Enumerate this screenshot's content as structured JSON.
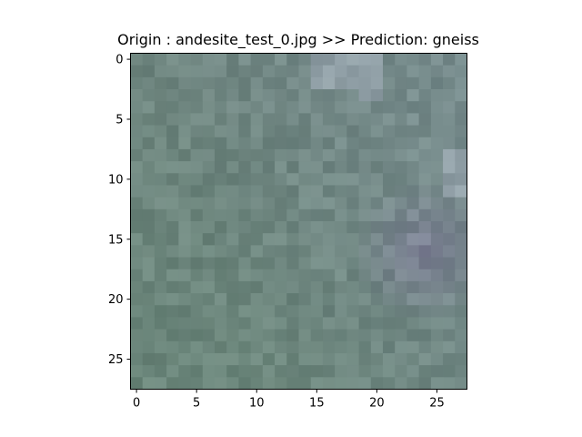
{
  "title": "Origin : andesite_test_0.jpg >> Prediction: gneiss",
  "image": {
    "rows": 28,
    "cols": 28,
    "description_palette": {
      "base": "#6f8580",
      "green": "#6a8779",
      "blue_gray": "#7f9299",
      "purple": "#7f7e98",
      "light": "#a6b0bd"
    }
  },
  "axes": {
    "x_ticks": [
      {
        "value": 0,
        "label": "0"
      },
      {
        "value": 5,
        "label": "5"
      },
      {
        "value": 10,
        "label": "10"
      },
      {
        "value": 15,
        "label": "15"
      },
      {
        "value": 20,
        "label": "20"
      },
      {
        "value": 25,
        "label": "25"
      }
    ],
    "y_ticks": [
      {
        "value": 0,
        "label": "0"
      },
      {
        "value": 5,
        "label": "5"
      },
      {
        "value": 10,
        "label": "10"
      },
      {
        "value": 15,
        "label": "15"
      },
      {
        "value": 20,
        "label": "20"
      },
      {
        "value": 25,
        "label": "25"
      }
    ]
  }
}
